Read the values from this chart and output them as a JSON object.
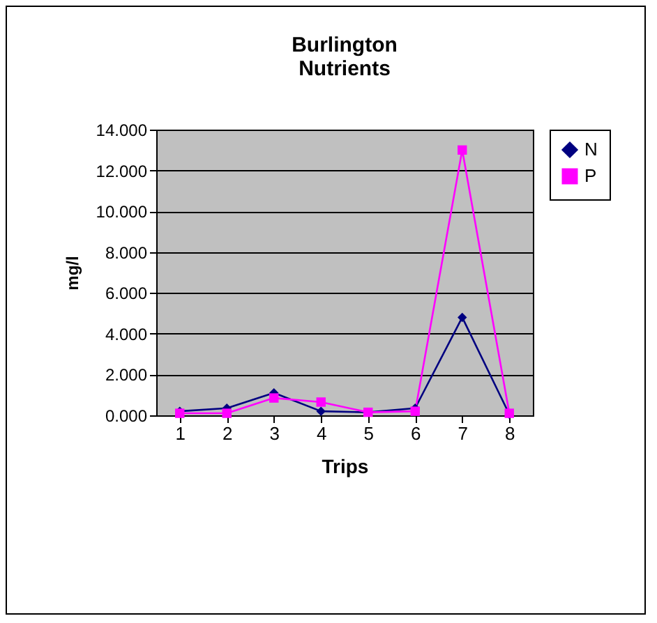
{
  "chart_data": {
    "type": "line",
    "title": "Burlington Nutrients",
    "xlabel": "Trips",
    "ylabel": "mg/l",
    "categories": [
      "1",
      "2",
      "3",
      "4",
      "5",
      "6",
      "7",
      "8"
    ],
    "series": [
      {
        "name": "N",
        "color": "#000080",
        "marker": "diamond",
        "values": [
          0.2,
          0.35,
          1.1,
          0.2,
          0.15,
          0.35,
          4.8,
          0.05
        ]
      },
      {
        "name": "P",
        "color": "#ff00ff",
        "marker": "square",
        "values": [
          0.1,
          0.1,
          0.85,
          0.65,
          0.15,
          0.2,
          13,
          0.1
        ]
      }
    ],
    "ylim": [
      0,
      14
    ],
    "yticks": [
      {
        "value": 0,
        "label": "0.000"
      },
      {
        "value": 2,
        "label": "2.000"
      },
      {
        "value": 4,
        "label": "4.000"
      },
      {
        "value": 6,
        "label": "6.000"
      },
      {
        "value": 8,
        "label": "8.000"
      },
      {
        "value": 10,
        "label": "10.000"
      },
      {
        "value": 12,
        "label": "12.000"
      },
      {
        "value": 14,
        "label": "14.000"
      }
    ],
    "grid": "y",
    "legend": "right",
    "line_style": "solid"
  }
}
